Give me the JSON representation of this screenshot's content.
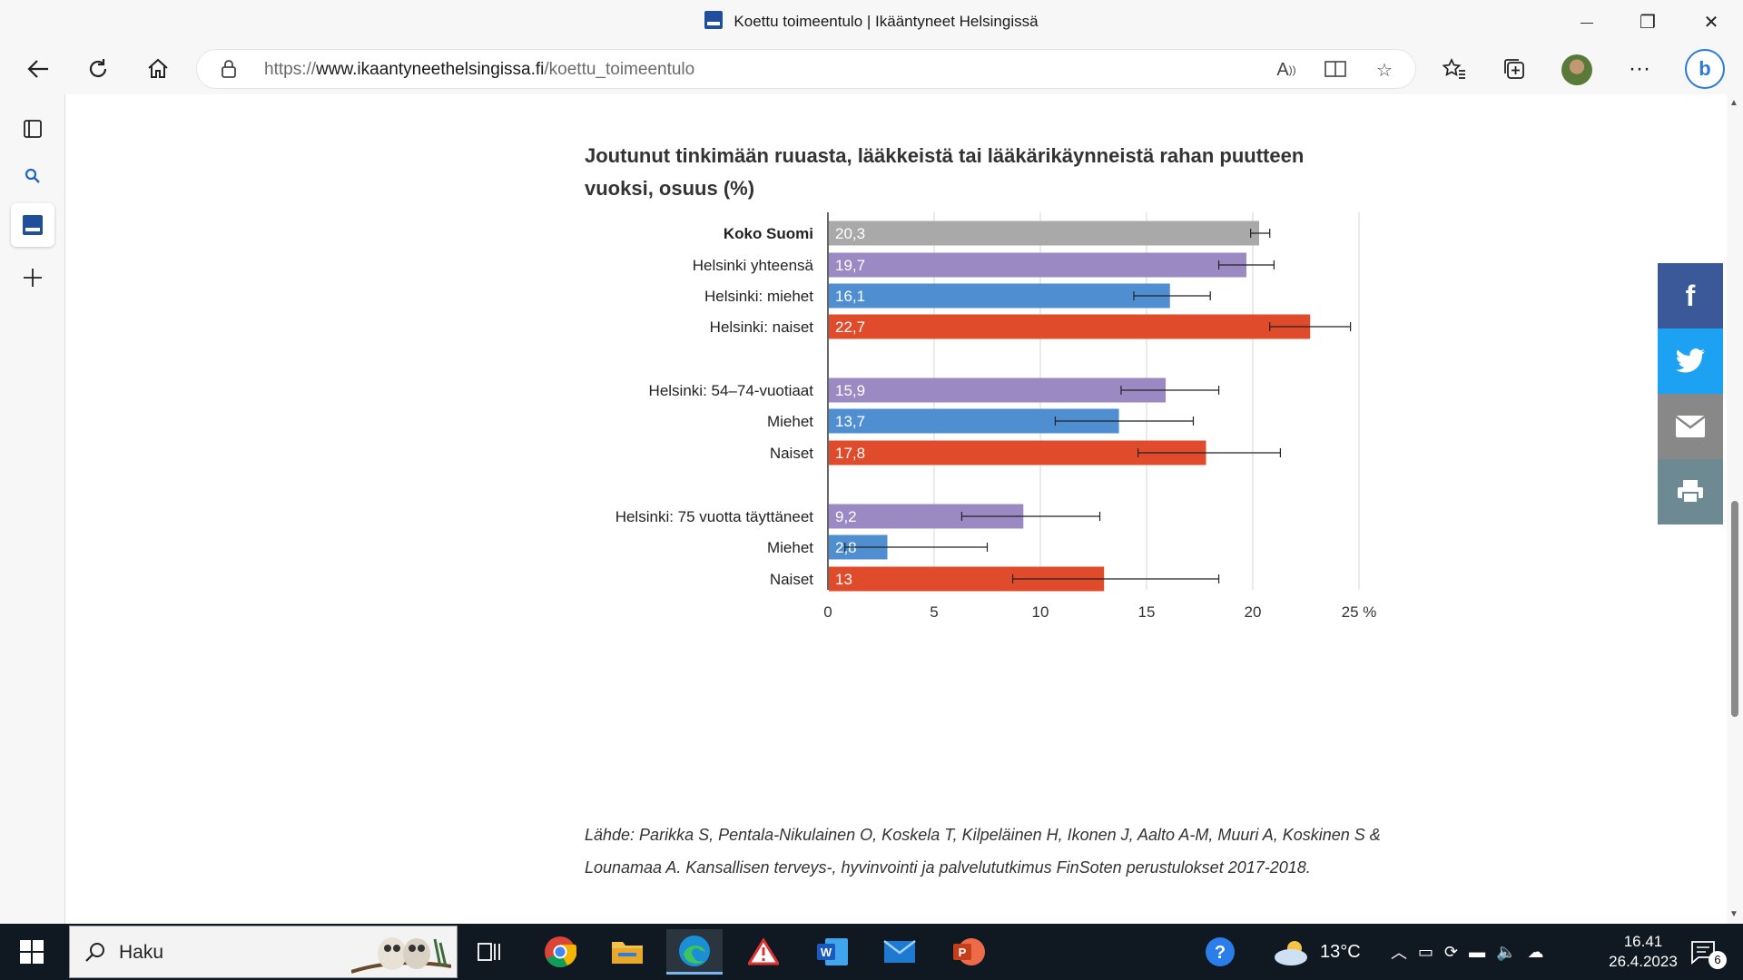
{
  "window": {
    "title": "Koettu toimeentulo | Ikääntyneet Helsingissä",
    "minimize_glyph": "—",
    "maximize_glyph": "❐",
    "close_glyph": "✕"
  },
  "address_bar": {
    "url_prefix": "https://",
    "url_host": "www.ikaantyneethelsingissa.fi",
    "url_path": "/koettu_toimeentulo"
  },
  "icons": {
    "back": "back-arrow-icon",
    "refresh": "refresh-icon",
    "home": "home-icon",
    "read_aloud": "read-aloud-icon",
    "immersive": "immersive-reader-icon",
    "favorite_add": "add-favorite-icon",
    "favorites": "favorites-icon",
    "collections": "collections-icon",
    "more": "more-icon",
    "bing": "bing-chat-icon"
  },
  "sidebar": {
    "items": [
      "tab-actions",
      "search",
      "ikaantyneet-helsingissa",
      "add"
    ]
  },
  "chart_data": {
    "type": "bar",
    "orientation": "horizontal",
    "title": "Joutunut tinkimään ruuasta, lääkkeistä tai lääkärikäynneistä rahan puutteen vuoksi, osuus (%)",
    "unit": "%",
    "xlim": [
      0,
      25
    ],
    "xticks": [
      "0",
      "5",
      "10",
      "15",
      "20",
      "25 %"
    ],
    "grid": true,
    "colors": {
      "total": "#a9a9a9",
      "group": "#9b89c4",
      "men": "#4f8fd1",
      "women": "#e04b2c"
    },
    "bars": [
      {
        "label": "Koko Suomi",
        "value": 20.3,
        "display": "20,3",
        "ci": [
          19.9,
          20.8
        ],
        "kind": "total",
        "bold": true
      },
      {
        "label": "Helsinki yhteensä",
        "value": 19.7,
        "display": "19,7",
        "ci": [
          18.4,
          21.0
        ],
        "kind": "group"
      },
      {
        "label": "Helsinki: miehet",
        "value": 16.1,
        "display": "16,1",
        "ci": [
          14.4,
          18.0
        ],
        "kind": "men"
      },
      {
        "label": "Helsinki: naiset",
        "value": 22.7,
        "display": "22,7",
        "ci": [
          20.8,
          24.6
        ],
        "kind": "women"
      },
      {
        "label": "Helsinki: 54–74-vuotiaat",
        "value": 15.9,
        "display": "15,9",
        "ci": [
          13.8,
          18.4
        ],
        "kind": "group"
      },
      {
        "label": "Miehet",
        "value": 13.7,
        "display": "13,7",
        "ci": [
          10.7,
          17.2
        ],
        "kind": "men"
      },
      {
        "label": "Naiset",
        "value": 17.8,
        "display": "17,8",
        "ci": [
          14.6,
          21.3
        ],
        "kind": "women"
      },
      {
        "label": "Helsinki: 75 vuotta täyttäneet",
        "value": 9.2,
        "display": "9,2",
        "ci": [
          6.3,
          12.8
        ],
        "kind": "group"
      },
      {
        "label": "Miehet",
        "value": 2.8,
        "display": "2,8",
        "ci": [
          0.8,
          7.5
        ],
        "kind": "men"
      },
      {
        "label": "Naiset",
        "value": 13,
        "display": "13",
        "ci": [
          8.7,
          18.4
        ],
        "kind": "women"
      }
    ]
  },
  "source": {
    "line1": "Lähde:  Parikka S, Pentala-Nikulainen O, Koskela T, Kilpeläinen H, Ikonen J, Aalto A-M, Muuri A, Koskinen S &",
    "line2": "Lounamaa A. Kansallisen terveys-, hyvinvointi ja palvelututkimus FinSoten perustulokset 2017-2018."
  },
  "share": [
    "facebook",
    "twitter",
    "email",
    "print"
  ],
  "taskbar": {
    "search_placeholder": "Haku",
    "weather": "13°C",
    "time": "16.41",
    "date": "26.4.2023",
    "notifications": "6"
  }
}
